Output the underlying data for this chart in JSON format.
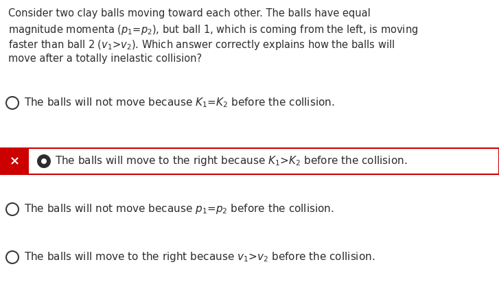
{
  "background_color": "#ffffff",
  "question_text_lines": [
    "Consider two clay balls moving toward each other. The balls have equal",
    "magnitude momenta ($p_1$=$p_2$), but ball 1, which is coming from the left, is moving",
    "faster than ball 2 ($v_1$>$v_2$). Which answer correctly explains how the balls will",
    "move after a totally inelastic collision?"
  ],
  "options": [
    {
      "text": "The balls will not move because $K_1$=$K_2$ before the collision.",
      "highlighted": false
    },
    {
      "text": "The balls will move to the right because $K_1$>$K_2$ before the collision.",
      "highlighted": true
    },
    {
      "text": "The balls will not move because $p_1$=$p_2$ before the collision.",
      "highlighted": false
    },
    {
      "text": "The balls will move to the right because $v_1$>$v_2$ before the collision.",
      "highlighted": false
    }
  ],
  "text_color": "#2d2d2d",
  "highlight_bg": "#cc0000",
  "x_color": "#ffffff",
  "font_size_question": 10.5,
  "font_size_option": 11.0,
  "fig_width": 7.27,
  "fig_height": 4.3,
  "dpi": 100
}
